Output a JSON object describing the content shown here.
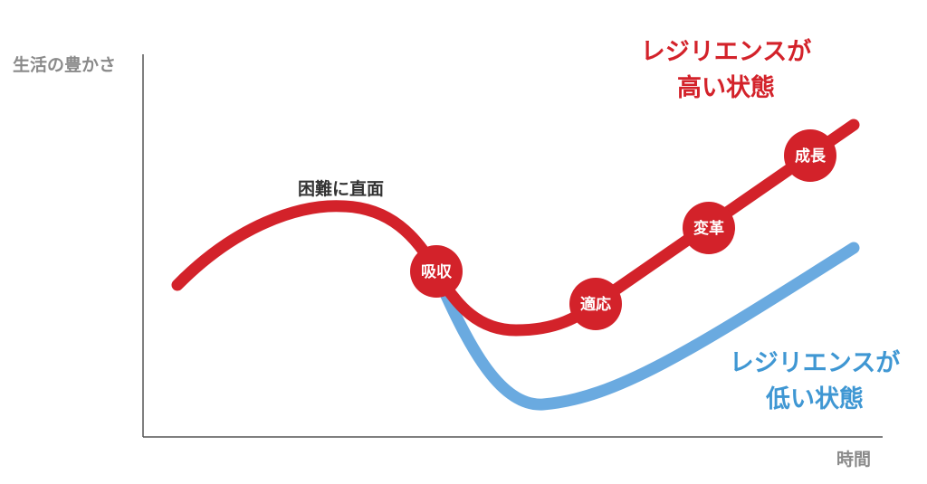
{
  "axes": {
    "y_label": "生活の豊かさ",
    "x_label": "時間"
  },
  "annotation": "困難に直面",
  "stages": {
    "absorb": "吸収",
    "adapt": "適応",
    "transform": "変革",
    "grow": "成長"
  },
  "legend": {
    "high_line1": "レジリエンスが",
    "high_line2": "高い状態",
    "low_line1": "レジリエンスが",
    "low_line2": "低い状態"
  },
  "colors": {
    "high": "#d3222a",
    "low": "#6aaae0",
    "axis": "#555555"
  }
}
